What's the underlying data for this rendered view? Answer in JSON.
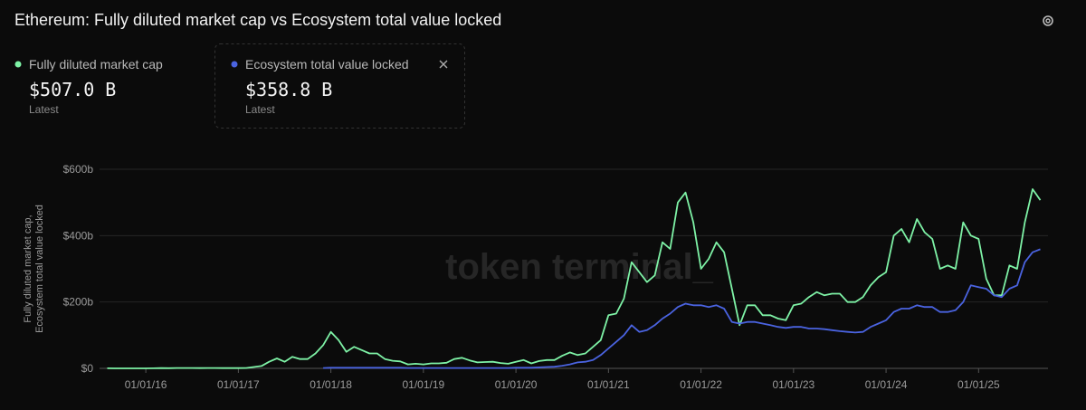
{
  "chart_data": {
    "type": "line",
    "title": "Ethereum: Fully diluted market cap vs Ecosystem total value locked",
    "y_label": [
      "Fully diluted market cap,",
      "Ecosystem total value locked"
    ],
    "watermark": "token terminal_",
    "x": [
      "01/08/15",
      "01/09/15",
      "01/10/15",
      "01/11/15",
      "01/12/15",
      "01/01/16",
      "01/02/16",
      "01/03/16",
      "01/04/16",
      "01/05/16",
      "01/06/16",
      "01/07/16",
      "01/08/16",
      "01/09/16",
      "01/10/16",
      "01/11/16",
      "01/12/16",
      "01/01/17",
      "01/02/17",
      "01/03/17",
      "01/04/17",
      "01/05/17",
      "01/06/17",
      "01/07/17",
      "01/08/17",
      "01/09/17",
      "01/10/17",
      "01/11/17",
      "01/12/17",
      "01/01/18",
      "01/02/18",
      "01/03/18",
      "01/04/18",
      "01/05/18",
      "01/06/18",
      "01/07/18",
      "01/08/18",
      "01/09/18",
      "01/10/18",
      "01/11/18",
      "01/12/18",
      "01/01/19",
      "01/02/19",
      "01/03/19",
      "01/04/19",
      "01/05/19",
      "01/06/19",
      "01/07/19",
      "01/08/19",
      "01/09/19",
      "01/10/19",
      "01/11/19",
      "01/12/19",
      "01/01/20",
      "01/02/20",
      "01/03/20",
      "01/04/20",
      "01/05/20",
      "01/06/20",
      "01/07/20",
      "01/08/20",
      "01/09/20",
      "01/10/20",
      "01/11/20",
      "01/12/20",
      "01/01/21",
      "01/02/21",
      "01/03/21",
      "01/04/21",
      "01/05/21",
      "01/06/21",
      "01/07/21",
      "01/08/21",
      "01/09/21",
      "01/10/21",
      "01/11/21",
      "01/12/21",
      "01/01/22",
      "01/02/22",
      "01/03/22",
      "01/04/22",
      "01/05/22",
      "01/06/22",
      "01/07/22",
      "01/08/22",
      "01/09/22",
      "01/10/22",
      "01/11/22",
      "01/12/22",
      "01/01/23",
      "01/02/23",
      "01/03/23",
      "01/04/23",
      "01/05/23",
      "01/06/23",
      "01/07/23",
      "01/08/23",
      "01/09/23",
      "01/10/23",
      "01/11/23",
      "01/12/23",
      "01/01/24",
      "01/02/24",
      "01/03/24",
      "01/04/24",
      "01/05/24",
      "01/06/24",
      "01/07/24",
      "01/08/24",
      "01/09/24",
      "01/10/24",
      "01/11/24",
      "01/12/24",
      "01/01/25",
      "01/02/25",
      "01/03/25",
      "01/04/25",
      "01/05/25",
      "01/06/25",
      "01/07/25",
      "01/08/25",
      "01/09/25"
    ],
    "series": [
      {
        "name": "Fully diluted market cap",
        "color": "#7ef2a6",
        "latest": "$507.0 B",
        "caption": "Latest",
        "values": [
          0.2,
          0.1,
          0.05,
          0.07,
          0.07,
          0.07,
          0.3,
          0.9,
          0.6,
          1.0,
          1.1,
          1.0,
          0.9,
          1.1,
          1.0,
          0.8,
          0.7,
          0.9,
          1.2,
          4,
          7,
          20,
          30,
          20,
          35,
          28,
          28,
          45,
          70,
          110,
          85,
          50,
          65,
          55,
          45,
          45,
          28,
          23,
          21,
          12,
          14,
          12,
          15,
          15,
          17,
          28,
          32,
          24,
          18,
          19,
          20,
          16,
          14,
          20,
          25,
          15,
          22,
          25,
          25,
          38,
          48,
          40,
          45,
          65,
          85,
          160,
          165,
          210,
          320,
          290,
          260,
          280,
          380,
          360,
          500,
          530,
          440,
          300,
          330,
          380,
          350,
          240,
          130,
          190,
          190,
          160,
          160,
          150,
          145,
          190,
          195,
          215,
          230,
          220,
          225,
          225,
          200,
          200,
          215,
          250,
          275,
          290,
          400,
          420,
          380,
          450,
          410,
          390,
          300,
          310,
          300,
          440,
          400,
          390,
          270,
          220,
          220,
          310,
          300,
          440,
          540,
          507
        ]
      },
      {
        "name": "Ecosystem total value locked",
        "color": "#4a63e0",
        "latest": "$358.8 B",
        "caption": "Latest",
        "values": [
          null,
          null,
          null,
          null,
          null,
          null,
          null,
          null,
          null,
          null,
          null,
          null,
          null,
          null,
          null,
          null,
          null,
          null,
          null,
          null,
          null,
          null,
          null,
          null,
          null,
          null,
          null,
          null,
          1,
          2,
          2,
          2,
          2,
          2,
          2,
          2,
          2,
          2,
          2,
          1,
          1,
          1,
          1,
          1,
          1,
          1,
          1,
          1,
          1,
          1,
          1,
          1,
          1,
          2,
          2,
          2,
          3,
          4,
          5,
          8,
          12,
          18,
          20,
          25,
          40,
          60,
          80,
          100,
          130,
          110,
          115,
          130,
          150,
          165,
          185,
          195,
          190,
          190,
          185,
          190,
          180,
          140,
          135,
          140,
          140,
          135,
          130,
          125,
          122,
          125,
          125,
          120,
          120,
          118,
          115,
          112,
          110,
          108,
          110,
          125,
          135,
          145,
          170,
          180,
          180,
          190,
          185,
          185,
          170,
          170,
          175,
          200,
          250,
          245,
          240,
          220,
          215,
          240,
          250,
          320,
          350,
          358.8
        ]
      }
    ],
    "xlim": [
      "01/07/15",
      "01/10/25"
    ],
    "xticks": [
      "01/01/16",
      "01/01/17",
      "01/01/18",
      "01/01/19",
      "01/01/20",
      "01/01/21",
      "01/01/22",
      "01/01/23",
      "01/01/24",
      "01/01/25"
    ],
    "ylim": [
      0,
      600
    ],
    "yticks": [
      {
        "value": 0,
        "label": "$0"
      },
      {
        "value": 200,
        "label": "$200b"
      },
      {
        "value": 400,
        "label": "$400b"
      },
      {
        "value": 600,
        "label": "$600b"
      }
    ],
    "grid": true
  }
}
